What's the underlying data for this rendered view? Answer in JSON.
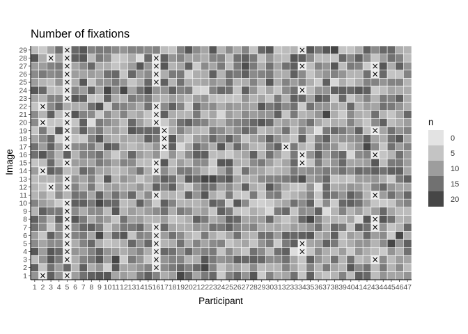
{
  "chart_data": {
    "type": "heatmap",
    "title": "Number of fixations",
    "xlabel": "Participant",
    "ylabel": "Image",
    "x_categories": [
      "1",
      "2",
      "3",
      "4",
      "5",
      "6",
      "7",
      "8",
      "9",
      "10",
      "11",
      "12",
      "13",
      "14",
      "15",
      "16",
      "17",
      "18",
      "19",
      "20",
      "21",
      "22",
      "23",
      "24",
      "25",
      "26",
      "27",
      "28",
      "29",
      "30",
      "31",
      "32",
      "33",
      "34",
      "35",
      "36",
      "37",
      "38",
      "39",
      "40",
      "41",
      "42",
      "43",
      "44",
      "45",
      "46",
      "47"
    ],
    "y_categories": [
      "1",
      "2",
      "3",
      "4",
      "5",
      "6",
      "7",
      "8",
      "9",
      "10",
      "11",
      "12",
      "13",
      "14",
      "15",
      "16",
      "17",
      "18",
      "19",
      "20",
      "21",
      "22",
      "23",
      "24",
      "25",
      "26",
      "27",
      "28",
      "29"
    ],
    "legend": {
      "title": "n",
      "breaks": [
        0,
        5,
        10,
        15,
        20
      ],
      "colors": [
        "#e3e3e3",
        "#c4c4c4",
        "#9d9d9d",
        "#717171",
        "#464646"
      ],
      "position": "right"
    },
    "value_range": [
      0,
      20
    ],
    "missing_marker": "×",
    "missing": [
      [
        "2",
        "1"
      ],
      [
        "5",
        "1"
      ],
      [
        "16",
        "2"
      ],
      [
        "5",
        "3"
      ],
      [
        "16",
        "3"
      ],
      [
        "43",
        "3"
      ],
      [
        "5",
        "4"
      ],
      [
        "16",
        "4"
      ],
      [
        "34",
        "4"
      ],
      [
        "5",
        "5"
      ],
      [
        "16",
        "5"
      ],
      [
        "34",
        "5"
      ],
      [
        "5",
        "6"
      ],
      [
        "16",
        "6"
      ],
      [
        "5",
        "7"
      ],
      [
        "16",
        "7"
      ],
      [
        "43",
        "7"
      ],
      [
        "5",
        "8"
      ],
      [
        "43",
        "8"
      ],
      [
        "5",
        "9"
      ],
      [
        "5",
        "10"
      ],
      [
        "16",
        "11"
      ],
      [
        "43",
        "11"
      ],
      [
        "3",
        "12"
      ],
      [
        "5",
        "12"
      ],
      [
        "5",
        "13"
      ],
      [
        "2",
        "14"
      ],
      [
        "16",
        "14"
      ],
      [
        "5",
        "15"
      ],
      [
        "16",
        "15"
      ],
      [
        "34",
        "15"
      ],
      [
        "34",
        "16"
      ],
      [
        "43",
        "16"
      ],
      [
        "5",
        "17"
      ],
      [
        "17",
        "17"
      ],
      [
        "32",
        "17"
      ],
      [
        "5",
        "18"
      ],
      [
        "17",
        "18"
      ],
      [
        "5",
        "19"
      ],
      [
        "17",
        "19"
      ],
      [
        "43",
        "19"
      ],
      [
        "2",
        "20"
      ],
      [
        "5",
        "20"
      ],
      [
        "16",
        "20"
      ],
      [
        "5",
        "21"
      ],
      [
        "16",
        "21"
      ],
      [
        "2",
        "22"
      ],
      [
        "16",
        "22"
      ],
      [
        "5",
        "23"
      ],
      [
        "5",
        "24"
      ],
      [
        "34",
        "24"
      ],
      [
        "5",
        "25"
      ],
      [
        "16",
        "25"
      ],
      [
        "5",
        "26"
      ],
      [
        "16",
        "26"
      ],
      [
        "43",
        "26"
      ],
      [
        "5",
        "27"
      ],
      [
        "16",
        "27"
      ],
      [
        "34",
        "27"
      ],
      [
        "43",
        "27"
      ],
      [
        "3",
        "28"
      ],
      [
        "5",
        "28"
      ],
      [
        "16",
        "28"
      ],
      [
        "5",
        "29"
      ],
      [
        "34",
        "29"
      ]
    ],
    "values_seed": 20240529,
    "grid": false
  }
}
